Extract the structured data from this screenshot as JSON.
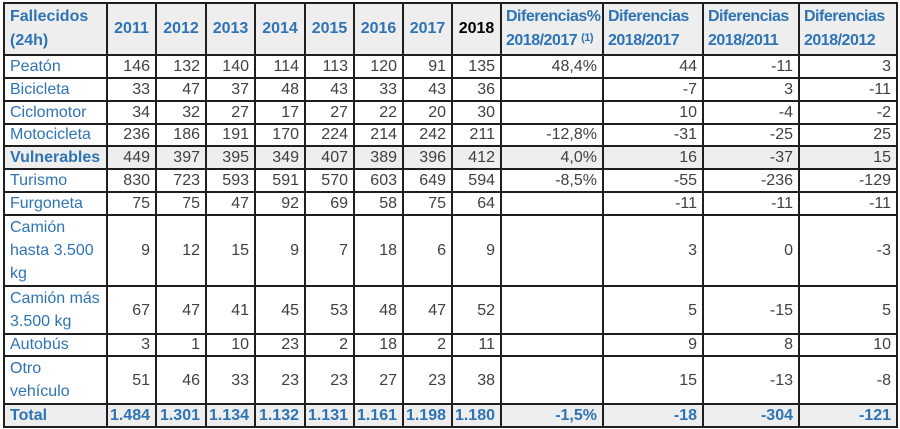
{
  "colors": {
    "accent_blue": "#2e74b5",
    "number_text": "#404040",
    "border": "#1f1f1f",
    "shaded_row_bg": "#eeeeee",
    "header_2018_text": "#000000",
    "page_bg": "#ffffff"
  },
  "chart_data": {
    "type": "table",
    "title": "Fallecidos (24h)",
    "columns": [
      "Fallecidos (24h)",
      "2011",
      "2012",
      "2013",
      "2014",
      "2015",
      "2016",
      "2017",
      "2018",
      "Diferencias% 2018/2017 (1)",
      "Diferencias 2018/2017",
      "Diferencias 2018/2011",
      "Diferencias 2018/2012"
    ],
    "rows": [
      [
        "Peatón",
        146,
        132,
        140,
        114,
        113,
        120,
        91,
        135,
        "48,4%",
        44,
        -11,
        3
      ],
      [
        "Bicicleta",
        33,
        47,
        37,
        48,
        43,
        33,
        43,
        36,
        "",
        -7,
        3,
        -11
      ],
      [
        "Ciclomotor",
        34,
        32,
        27,
        17,
        27,
        22,
        20,
        30,
        "",
        10,
        -4,
        -2
      ],
      [
        "Motocicleta",
        236,
        186,
        191,
        170,
        224,
        214,
        242,
        211,
        "-12,8%",
        -31,
        -25,
        25
      ],
      [
        "Vulnerables",
        449,
        397,
        395,
        349,
        407,
        389,
        396,
        412,
        "4,0%",
        16,
        -37,
        15
      ],
      [
        "Turismo",
        830,
        723,
        593,
        591,
        570,
        603,
        649,
        594,
        "-8,5%",
        -55,
        -236,
        -129
      ],
      [
        "Furgoneta",
        75,
        75,
        47,
        92,
        69,
        58,
        75,
        64,
        "",
        -11,
        -11,
        -11
      ],
      [
        "Camión hasta 3.500 kg",
        9,
        12,
        15,
        9,
        7,
        18,
        6,
        9,
        "",
        3,
        0,
        -3
      ],
      [
        "Camión más 3.500 kg",
        67,
        47,
        41,
        45,
        53,
        48,
        47,
        52,
        "",
        5,
        -15,
        5
      ],
      [
        "Autobús",
        3,
        1,
        10,
        23,
        2,
        18,
        2,
        11,
        "",
        9,
        8,
        10
      ],
      [
        "Otro vehículo",
        51,
        46,
        33,
        23,
        23,
        27,
        23,
        38,
        "",
        15,
        -13,
        -8
      ],
      [
        "Total",
        "1.484",
        "1.301",
        "1.134",
        "1.132",
        "1.131",
        "1.161",
        "1.198",
        "1.180",
        "-1,5%",
        -18,
        -304,
        -121
      ]
    ]
  },
  "table": {
    "header": {
      "label": "Fallecidos (24h)",
      "years": [
        "2011",
        "2012",
        "2013",
        "2014",
        "2015",
        "2016",
        "2017"
      ],
      "year_2018": "2018",
      "diff_pct": {
        "line1": "Diferencias%",
        "line2": "2018/2017",
        "sup": "(1)"
      },
      "diff_cols": [
        {
          "line1": "Diferencias",
          "line2": "2018/2017"
        },
        {
          "line1": "Diferencias",
          "line2": "2018/2011"
        },
        {
          "line1": "Diferencias",
          "line2": "2018/2012"
        }
      ]
    },
    "rows": [
      {
        "name": "row-peaton",
        "style": "r1",
        "label": "Peatón",
        "values": [
          "146",
          "132",
          "140",
          "114",
          "113",
          "120",
          "91",
          "135"
        ],
        "diff_pct": "48,4%",
        "diffs": [
          "44",
          "-11",
          "3"
        ]
      },
      {
        "name": "row-bicicleta",
        "style": "r1",
        "label": "Bicicleta",
        "values": [
          "33",
          "47",
          "37",
          "48",
          "43",
          "33",
          "43",
          "36"
        ],
        "diff_pct": "",
        "diffs": [
          "-7",
          "3",
          "-11"
        ]
      },
      {
        "name": "row-ciclomotor",
        "style": "r1",
        "label": "Ciclomotor",
        "values": [
          "34",
          "32",
          "27",
          "17",
          "27",
          "22",
          "20",
          "30"
        ],
        "diff_pct": "",
        "diffs": [
          "10",
          "-4",
          "-2"
        ]
      },
      {
        "name": "row-motocicleta",
        "style": "rs",
        "label": "Motocicleta",
        "values": [
          "236",
          "186",
          "191",
          "170",
          "224",
          "214",
          "242",
          "211"
        ],
        "diff_pct": "-12,8%",
        "diffs": [
          "-31",
          "-25",
          "25"
        ]
      },
      {
        "name": "row-vulnerables",
        "style": "r1 shaded",
        "label": "Vulnerables",
        "values": [
          "449",
          "397",
          "395",
          "349",
          "407",
          "389",
          "396",
          "412"
        ],
        "diff_pct": "4,0%",
        "diffs": [
          "16",
          "-37",
          "15"
        ]
      },
      {
        "name": "row-turismo",
        "style": "r1",
        "label": "Turismo",
        "values": [
          "830",
          "723",
          "593",
          "591",
          "570",
          "603",
          "649",
          "594"
        ],
        "diff_pct": "-8,5%",
        "diffs": [
          "-55",
          "-236",
          "-129"
        ]
      },
      {
        "name": "row-furgoneta",
        "style": "r1",
        "label": "Furgoneta",
        "values": [
          "75",
          "75",
          "47",
          "92",
          "69",
          "58",
          "75",
          "64"
        ],
        "diff_pct": "",
        "diffs": [
          "-11",
          "-11",
          "-11"
        ]
      },
      {
        "name": "row-camion-hasta-3500",
        "style": "r3",
        "label": "Camión hasta 3.500 kg",
        "values": [
          "9",
          "12",
          "15",
          "9",
          "7",
          "18",
          "6",
          "9"
        ],
        "diff_pct": "",
        "diffs": [
          "3",
          "0",
          "-3"
        ]
      },
      {
        "name": "row-camion-mas-3500",
        "style": "r2",
        "label": "Camión más 3.500 kg",
        "values": [
          "67",
          "47",
          "41",
          "45",
          "53",
          "48",
          "47",
          "52"
        ],
        "diff_pct": "",
        "diffs": [
          "5",
          "-15",
          "5"
        ]
      },
      {
        "name": "row-autobus",
        "style": "rs",
        "label": "Autobús",
        "values": [
          "3",
          "1",
          "10",
          "23",
          "2",
          "18",
          "2",
          "11"
        ],
        "diff_pct": "",
        "diffs": [
          "9",
          "8",
          "10"
        ]
      },
      {
        "name": "row-otro-vehiculo",
        "style": "r2b",
        "label": "Otro vehículo",
        "values": [
          "51",
          "46",
          "33",
          "23",
          "23",
          "27",
          "23",
          "38"
        ],
        "diff_pct": "",
        "diffs": [
          "15",
          "-13",
          "-8"
        ]
      },
      {
        "name": "row-total",
        "style": "r1 total",
        "label": "Total",
        "values": [
          "1.484",
          "1.301",
          "1.134",
          "1.132",
          "1.131",
          "1.161",
          "1.198",
          "1.180"
        ],
        "diff_pct": "-1,5%",
        "diffs": [
          "-18",
          "-304",
          "-121"
        ]
      }
    ]
  }
}
